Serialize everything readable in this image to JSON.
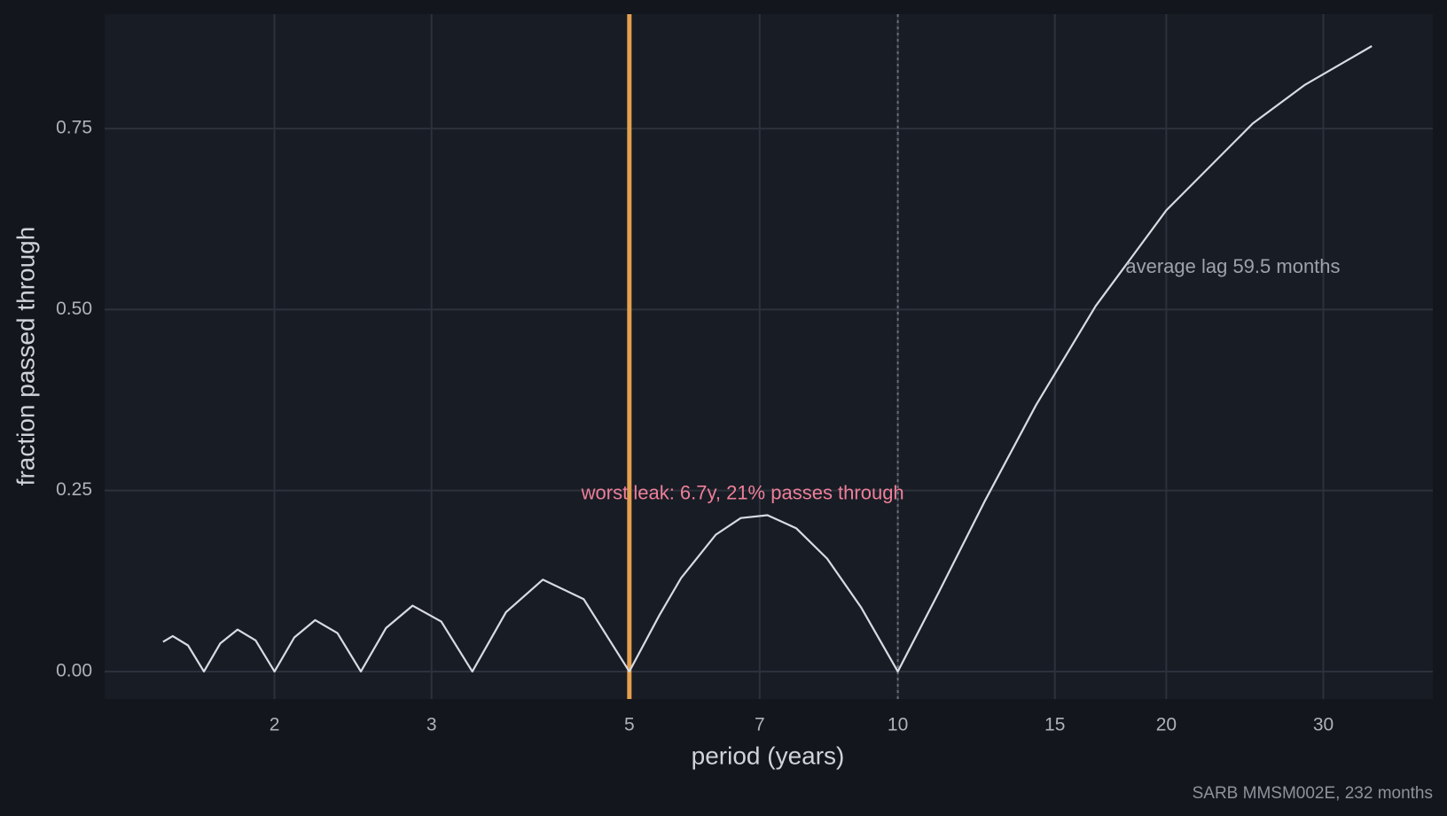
{
  "chart_data": {
    "type": "line",
    "xlabel": "period (years)",
    "ylabel": "fraction passed through",
    "caption": "SARB MMSM002E, 232 months",
    "xscale": "log",
    "grid": true,
    "xlim": [
      1.29,
      39.8
    ],
    "ylim": [
      -0.038,
      0.908
    ],
    "xticks": [
      2,
      3,
      5,
      7,
      10,
      15,
      20,
      30
    ],
    "yticks": [
      {
        "value": 0,
        "label": "0.00"
      },
      0.25,
      {
        "value": 0.5,
        "label": "0.50"
      },
      0.75
    ],
    "series": [
      {
        "color": "#d8dbe2",
        "x": [
          1.5,
          1.538,
          1.6,
          1.667,
          1.739,
          1.818,
          1.905,
          2,
          2.105,
          2.222,
          2.353,
          2.5,
          2.667,
          2.857,
          3.077,
          3.333,
          3.636,
          4,
          4.444,
          5,
          5.405,
          5.714,
          6.25,
          6.667,
          7.143,
          7.692,
          8.333,
          9.091,
          10,
          11.11,
          12.5,
          14.29,
          16.67,
          20,
          25,
          28.57,
          34
        ],
        "values": [
          0.041,
          0.049,
          0.036,
          0,
          0.039,
          0.058,
          0.043,
          0,
          0.047,
          0.071,
          0.053,
          0,
          0.06,
          0.091,
          0.069,
          0,
          0.082,
          0.127,
          0.1,
          0,
          0.078,
          0.129,
          0.189,
          0.212,
          0.216,
          0.198,
          0.156,
          0.089,
          0,
          0.109,
          0.234,
          0.368,
          0.505,
          0.637,
          0.757,
          0.81,
          0.864
        ]
      }
    ],
    "vlines": [
      {
        "x": 5,
        "color": "#e5a04e",
        "style": "solid"
      },
      {
        "x": 10,
        "color": "#6a6f7c",
        "style": "dotted"
      }
    ],
    "annotations": [
      {
        "text": "worst leak: 6.7y, 21% passes through",
        "x": 6.7,
        "y": 0.245,
        "color": "#ee7f99",
        "align": "middle"
      },
      {
        "text": "average lag 59.5 months",
        "x": 18,
        "y": 0.558,
        "color": "#9ea2aa",
        "align": "start"
      }
    ]
  }
}
